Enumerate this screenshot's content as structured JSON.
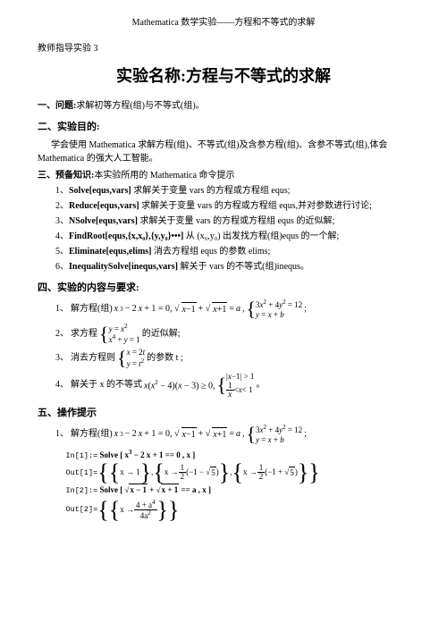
{
  "header": "Mathematica 数学实验——方程和不等式的求解",
  "guide": "教师指导实验 3",
  "title": "实验名称:方程与不等式的求解",
  "s1": {
    "head": "一、问题:",
    "text": "求解初等方程(组)与不等式(组)。"
  },
  "s2": {
    "head": "二、实验目的:",
    "p1": "学会使用 Mathematica 求解方程(组)、不等式(组)及含参方程(组)、含参不等式(组),体会 Mathematica 的强大人工智能。"
  },
  "s3": {
    "head": "三、预备知识:",
    "subhead": "本实验所用的 Mathematica 命令提示",
    "items": [
      {
        "n": "1、",
        "cmd": "Solve[equs,vars]",
        "desc": " 求解关于变量 vars 的方程或方程组 equs;"
      },
      {
        "n": "2、",
        "cmd": "Reduce[equs,vars]",
        "desc": " 求解关于变量 vars 的方程或方程组 equs,并对参数进行讨论;"
      },
      {
        "n": "3、",
        "cmd": "NSolve[equs,vars]",
        "desc": " 求解关于变量 vars 的方程或方程组 equs 的近似解;"
      },
      {
        "n": "4、",
        "cmd": "FindRoot[equs,{x,x₀},{y,y₀}•••]",
        "desc": " 从 (x₀,y₀) 出发找方程(组)equs 的一个解;"
      },
      {
        "n": "5、",
        "cmd": "Eliminate[equs,elims]",
        "desc": " 消去方程组 equs 的参数 elims;"
      },
      {
        "n": "6、",
        "cmd": "InequalitySolve[inequs,vars]",
        "desc": " 解关于 vars 的不等式(组)inequs。"
      }
    ]
  },
  "s4": {
    "head": "四、实验的内容与要求:",
    "q1": {
      "n": "1、",
      "pre": "解方程(组) ",
      "eq1": "x³ − 2x + 1 = 0,",
      "eq2a": "√(x−1) + √(x+1) = a,",
      "sys1a": "3x² + 4y² = 12",
      "sys1b": "y = x + b",
      "post": ";"
    },
    "q2": {
      "n": "2、",
      "pre": "求方程",
      "sysA": "y = x²",
      "sysB": "x⁴ + y = 1",
      "post": "的近似解;"
    },
    "q3": {
      "n": "3、",
      "pre": "消去方程则",
      "sysA": "x = 2t",
      "sysB": "y = t²",
      "post": "的参数 t ;"
    },
    "q4": {
      "n": "4、",
      "pre": "解关于 x 的不等式 ",
      "eq": "x(x² − 4)(x − 3) ≥ 0,",
      "sysA": "|x−1| > 1",
      "sysB_l": "1",
      "sysB_r": "x",
      "sysB_op": "< x < 1",
      "post": "。"
    }
  },
  "s5": {
    "head": "五、操作提示",
    "q1": {
      "n": "1、",
      "pre": "解方程(组) ",
      "eq1": "x³ − 2x + 1 = 0,",
      "eq2": "√(x−1) + √(x+1) = a,",
      "sysA": "3x² + 4y² = 12",
      "sysB": "y = x + b",
      "post": ";"
    },
    "in1": {
      "label": "In[1]:=",
      "code": "Solve [ x³ − 2 x + 1 == 0 , x ]"
    },
    "out1": {
      "label": "Out[1]=",
      "r1": "{x → 1}",
      "r2_pre": "x →",
      "r2_frac_n": "1",
      "r2_frac_d": "2",
      "r2_paren": "(−1 − √5)",
      "r3_pre": "x →",
      "r3_frac_n": "1",
      "r3_frac_d": "2",
      "r3_paren": "(−1 + √5)"
    },
    "in2": {
      "label": "In[2]:=",
      "code": "Solve [ √(x − 1) + √(x + 1) == a , x ]"
    },
    "out2": {
      "label": "Out[2]=",
      "pre": "x →",
      "num": "4 + a⁴",
      "den": "4a²"
    }
  },
  "colors": {
    "text": "#000000",
    "bg": "#ffffff"
  }
}
